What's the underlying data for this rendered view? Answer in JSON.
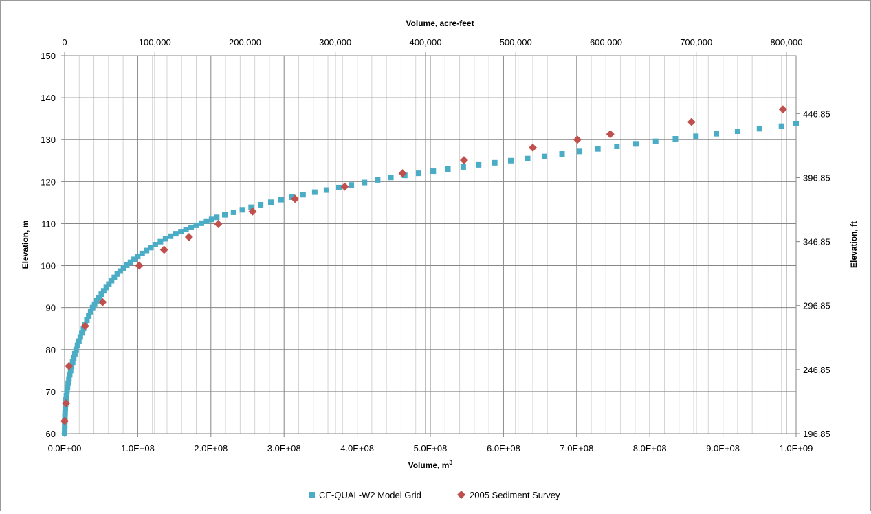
{
  "chart_data": {
    "type": "scatter",
    "xlabel_bottom": "Volume, m",
    "xlabel_bottom_superscript": "3",
    "xlabel_top": "Volume, acre-feet",
    "ylabel_left": "Elevation, m",
    "ylabel_right": "Elevation, ft",
    "xlim": [
      0,
      1000000000
    ],
    "ylim": [
      60,
      150
    ],
    "x2lim": [
      0,
      810713.2
    ],
    "grid": true,
    "legend_position": "bottom",
    "x_ticks": [
      "0.0E+00",
      "1.0E+08",
      "2.0E+08",
      "3.0E+08",
      "4.0E+08",
      "5.0E+08",
      "6.0E+08",
      "7.0E+08",
      "8.0E+08",
      "9.0E+08",
      "1.0E+09"
    ],
    "x_tick_values": [
      0,
      100000000,
      200000000,
      300000000,
      400000000,
      500000000,
      600000000,
      700000000,
      800000000,
      900000000,
      1000000000
    ],
    "x2_ticks": [
      "0",
      "100,000",
      "200,000",
      "300,000",
      "400,000",
      "500,000",
      "600,000",
      "700,000",
      "800,000"
    ],
    "x2_tick_values": [
      0,
      100000,
      200000,
      300000,
      400000,
      500000,
      600000,
      700000,
      800000
    ],
    "y_ticks": [
      "60",
      "70",
      "80",
      "90",
      "100",
      "110",
      "120",
      "130",
      "140",
      "150"
    ],
    "y_tick_values": [
      60,
      70,
      80,
      90,
      100,
      110,
      120,
      130,
      140,
      150
    ],
    "y2_ticks": [
      "196.85",
      "246.85",
      "296.85",
      "346.85",
      "396.85",
      "446.85"
    ],
    "y2_tick_values": [
      196.85,
      246.85,
      296.85,
      346.85,
      396.85,
      446.85
    ],
    "y2lim": [
      196.85,
      492.13
    ],
    "series": [
      {
        "name": "CE-QUAL-W2 Model Grid",
        "color": "#4bacc6",
        "marker": "square",
        "x": [
          0,
          100000,
          200000,
          300000,
          500000,
          700000,
          1000000,
          1400000,
          1900000,
          2500000,
          3200000,
          4000000,
          4900000,
          5900000,
          7000000,
          8200000,
          9500000,
          11000000,
          12500000,
          14000000,
          15800000,
          17600000,
          19500000,
          21500000,
          23600000,
          25800000,
          28000000,
          30500000,
          33000000,
          35600000,
          38300000,
          41000000,
          44000000,
          47000000,
          50200000,
          53500000,
          57000000,
          60500000,
          64200000,
          68000000,
          72000000,
          76000000,
          80500000,
          85000000,
          90000000,
          95000000,
          100000000,
          106000000,
          112000000,
          118000000,
          124000000,
          131000000,
          138000000,
          145000000,
          152000000,
          159000000,
          166000000,
          173000000,
          180000000,
          187000000,
          194000000,
          201000000,
          208000000,
          219000000,
          231000000,
          243000000,
          255000000,
          268000000,
          282000000,
          296000000,
          311000000,
          326000000,
          342000000,
          358000000,
          375000000,
          392000000,
          410000000,
          428000000,
          446000000,
          465000000,
          484000000,
          504000000,
          524000000,
          545000000,
          566000000,
          588000000,
          610000000,
          633000000,
          656000000,
          680000000,
          704000000,
          729000000,
          755000000,
          781000000,
          808000000,
          835000000,
          863000000,
          891000000,
          920000000,
          950000000,
          980000000,
          1000000000
        ],
        "y": [
          60,
          61,
          62,
          63,
          64,
          65,
          66,
          67,
          68,
          69,
          70,
          71,
          72,
          73,
          74,
          75,
          76,
          77,
          78,
          79,
          80,
          81,
          82,
          83,
          84,
          85,
          86,
          87,
          88,
          89,
          90,
          90.8,
          91.6,
          92.4,
          93.2,
          94,
          94.8,
          95.6,
          96.4,
          97.2,
          98,
          98.7,
          99.4,
          100.1,
          100.8,
          101.5,
          102.2,
          102.9,
          103.6,
          104.3,
          105,
          105.7,
          106.4,
          107,
          107.6,
          108.1,
          108.6,
          109.1,
          109.6,
          110.1,
          110.6,
          111,
          111.5,
          112.1,
          112.7,
          113.3,
          113.9,
          114.5,
          115.1,
          115.7,
          116.3,
          116.9,
          117.5,
          118,
          118.6,
          119.2,
          119.8,
          120.4,
          121,
          121.5,
          122,
          122.5,
          123,
          123.5,
          124,
          124.5,
          125,
          125.5,
          126,
          126.6,
          127.2,
          127.8,
          128.4,
          129,
          129.6,
          130.2,
          130.8,
          131.4,
          132,
          132.6,
          133.2,
          133.8
        ]
      },
      {
        "name": "2005 Sediment Survey",
        "color": "#c0504d",
        "marker": "diamond",
        "x": [
          0,
          2000000,
          6000000,
          28000000,
          52000000,
          102000000,
          136000000,
          170000000,
          210000000,
          257000000,
          315000000,
          383000000,
          462000000,
          546000000,
          640000000,
          701000000,
          746000000,
          857000000,
          982000000
        ],
        "y": [
          63,
          67.2,
          76.1,
          85.6,
          91.3,
          100,
          103.8,
          106.8,
          109.9,
          112.9,
          115.9,
          118.8,
          122,
          125.1,
          128.1,
          130,
          131.3,
          134.2,
          137.2
        ]
      }
    ]
  }
}
